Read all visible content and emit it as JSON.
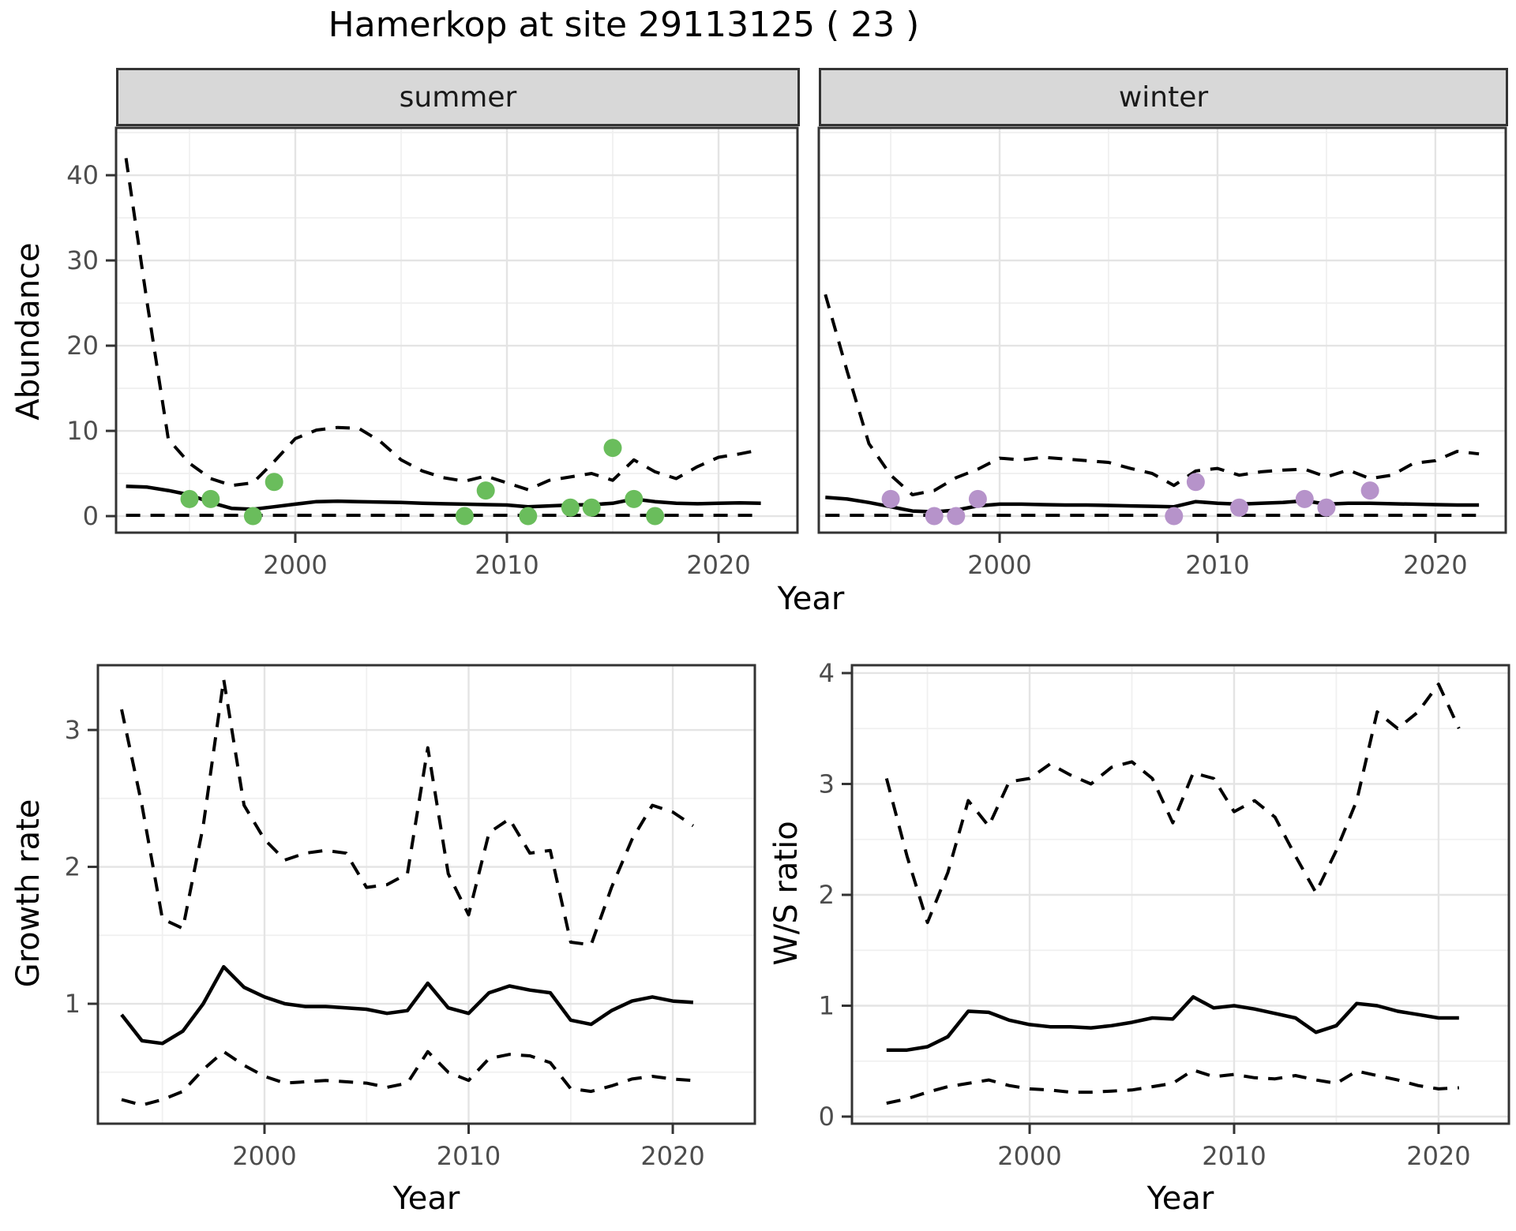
{
  "title": "Hamerkop at site 29113125 ( 23 )",
  "colors": {
    "background": "#ffffff",
    "summer_point": "#6abd5c",
    "winter_point": "#b693ca",
    "line": "#000000",
    "grid_major": "#e4e4e4",
    "grid_minor": "#f0f0f0",
    "panel_border": "#333333",
    "strip_bg": "#d8d8d8",
    "tick_text": "#4d4d4d"
  },
  "chart_data": [
    {
      "id": "abundance_summer",
      "type": "line",
      "facet_label": "summer",
      "xlabel": "Year",
      "ylabel": "Abundance",
      "x_ticks": [
        2000,
        2010,
        2020
      ],
      "y_ticks": [
        0,
        10,
        20,
        30,
        40
      ],
      "xlim": [
        1991.53,
        2023.73
      ],
      "ylim": [
        -1.94,
        45.56
      ],
      "grid": "on",
      "legend": "none",
      "years": [
        1992,
        1993,
        1994,
        1995,
        1996,
        1997,
        1998,
        1999,
        2000,
        2001,
        2002,
        2003,
        2004,
        2005,
        2006,
        2007,
        2008,
        2009,
        2010,
        2011,
        2012,
        2013,
        2014,
        2015,
        2016,
        2017,
        2018,
        2019,
        2020,
        2021,
        2022
      ],
      "series": [
        {
          "name": "mean",
          "style": "solid",
          "values": [
            3.5,
            3.4,
            3.0,
            2.5,
            1.6,
            0.9,
            0.8,
            1.1,
            1.4,
            1.7,
            1.75,
            1.7,
            1.65,
            1.6,
            1.5,
            1.45,
            1.4,
            1.35,
            1.3,
            1.1,
            1.2,
            1.3,
            1.35,
            1.5,
            2.0,
            1.7,
            1.5,
            1.45,
            1.5,
            1.55,
            1.5
          ]
        },
        {
          "name": "upper_ci",
          "style": "dashed",
          "values": [
            42,
            25,
            9,
            6.2,
            4.4,
            3.6,
            3.9,
            6.4,
            9.1,
            10.1,
            10.4,
            10.3,
            8.8,
            6.6,
            5.3,
            4.5,
            4.1,
            4.7,
            3.9,
            3.1,
            4.2,
            4.6,
            5.0,
            4.2,
            6.6,
            5.2,
            4.4,
            5.8,
            6.9,
            7.3,
            7.8
          ]
        },
        {
          "name": "lower_ci",
          "style": "dashed",
          "values": [
            0.1,
            0.1,
            0.1,
            0.1,
            0.1,
            0.1,
            0.1,
            0.1,
            0.1,
            0.1,
            0.1,
            0.1,
            0.1,
            0.1,
            0.1,
            0.1,
            0.1,
            0.1,
            0.1,
            0.1,
            0.1,
            0.1,
            0.1,
            0.1,
            0.1,
            0.1,
            0.1,
            0.1,
            0.1,
            0.1,
            0.1
          ]
        }
      ],
      "points": {
        "name": "observed_counts",
        "color_key": "summer_point",
        "x": [
          1995,
          1996,
          1998,
          1999,
          2008,
          2009,
          2011,
          2013,
          2014,
          2015,
          2016,
          2017
        ],
        "y": [
          2,
          2,
          0,
          4,
          0,
          3,
          0,
          1,
          1,
          8,
          2,
          0
        ]
      }
    },
    {
      "id": "abundance_winter",
      "type": "line",
      "facet_label": "winter",
      "xlabel": "Year",
      "ylabel": "Abundance",
      "x_ticks": [
        2000,
        2010,
        2020
      ],
      "y_ticks": [
        0,
        10,
        20,
        30,
        40
      ],
      "xlim": [
        1991.7,
        2023.23
      ],
      "ylim": [
        -1.94,
        45.56
      ],
      "grid": "on",
      "legend": "none",
      "years": [
        1992,
        1993,
        1994,
        1995,
        1996,
        1997,
        1998,
        1999,
        2000,
        2001,
        2002,
        2003,
        2004,
        2005,
        2006,
        2007,
        2008,
        2009,
        2010,
        2011,
        2012,
        2013,
        2014,
        2015,
        2016,
        2017,
        2018,
        2019,
        2020,
        2021,
        2022
      ],
      "series": [
        {
          "name": "mean",
          "style": "solid",
          "values": [
            2.2,
            2.0,
            1.6,
            1.1,
            0.6,
            0.5,
            0.7,
            1.2,
            1.4,
            1.4,
            1.35,
            1.3,
            1.3,
            1.25,
            1.2,
            1.15,
            1.1,
            1.7,
            1.5,
            1.4,
            1.5,
            1.6,
            1.8,
            1.4,
            1.5,
            1.5,
            1.45,
            1.4,
            1.35,
            1.3,
            1.3
          ]
        },
        {
          "name": "upper_ci",
          "style": "dashed",
          "values": [
            26,
            17,
            8.5,
            4.8,
            2.5,
            3.0,
            4.5,
            5.5,
            6.8,
            6.6,
            6.9,
            6.7,
            6.5,
            6.3,
            5.6,
            5.0,
            3.6,
            5.3,
            5.6,
            4.8,
            5.2,
            5.4,
            5.5,
            4.6,
            5.4,
            4.4,
            4.8,
            6.2,
            6.5,
            7.6,
            7.3
          ]
        },
        {
          "name": "lower_ci",
          "style": "dashed",
          "values": [
            0.1,
            0.1,
            0.1,
            0.1,
            0.1,
            0.1,
            0.1,
            0.1,
            0.1,
            0.1,
            0.1,
            0.1,
            0.1,
            0.1,
            0.1,
            0.1,
            0.1,
            0.1,
            0.1,
            0.1,
            0.1,
            0.1,
            0.1,
            0.1,
            0.1,
            0.1,
            0.1,
            0.1,
            0.1,
            0.1,
            0.1
          ]
        }
      ],
      "points": {
        "name": "observed_counts",
        "color_key": "winter_point",
        "x": [
          1995,
          1997,
          1998,
          1999,
          2008,
          2009,
          2011,
          2014,
          2015,
          2017
        ],
        "y": [
          2,
          0,
          0,
          2,
          0,
          4,
          1,
          2,
          1,
          3
        ]
      }
    },
    {
      "id": "growth_rate",
      "type": "line",
      "facet_label": "",
      "xlabel": "Year",
      "ylabel": "Growth rate",
      "x_ticks": [
        2000,
        2010,
        2020
      ],
      "y_ticks": [
        1,
        2,
        3
      ],
      "xlim": [
        1991.84,
        2024.02
      ],
      "ylim": [
        0.124,
        3.473
      ],
      "grid": "on",
      "legend": "none",
      "years": [
        1993,
        1994,
        1995,
        1996,
        1997,
        1998,
        1999,
        2000,
        2001,
        2002,
        2003,
        2004,
        2005,
        2006,
        2007,
        2008,
        2009,
        2010,
        2011,
        2012,
        2013,
        2014,
        2015,
        2016,
        2017,
        2018,
        2019,
        2020,
        2021
      ],
      "series": [
        {
          "name": "mean",
          "style": "solid",
          "values": [
            0.92,
            0.73,
            0.71,
            0.8,
            1.0,
            1.27,
            1.12,
            1.05,
            1.0,
            0.98,
            0.98,
            0.97,
            0.96,
            0.93,
            0.95,
            1.15,
            0.97,
            0.93,
            1.08,
            1.13,
            1.1,
            1.08,
            0.88,
            0.85,
            0.95,
            1.02,
            1.05,
            1.02,
            1.01
          ]
        },
        {
          "name": "upper_ci",
          "style": "dashed",
          "values": [
            3.15,
            2.45,
            1.62,
            1.55,
            2.3,
            3.37,
            2.45,
            2.2,
            2.05,
            2.1,
            2.12,
            2.1,
            1.85,
            1.87,
            1.95,
            2.87,
            1.95,
            1.65,
            2.25,
            2.35,
            2.1,
            2.12,
            1.45,
            1.43,
            1.85,
            2.2,
            2.45,
            2.4,
            2.3
          ]
        },
        {
          "name": "lower_ci",
          "style": "dashed",
          "values": [
            0.3,
            0.26,
            0.3,
            0.36,
            0.52,
            0.65,
            0.55,
            0.47,
            0.42,
            0.43,
            0.44,
            0.43,
            0.42,
            0.39,
            0.42,
            0.65,
            0.5,
            0.44,
            0.6,
            0.63,
            0.62,
            0.57,
            0.38,
            0.36,
            0.4,
            0.45,
            0.47,
            0.45,
            0.44
          ]
        }
      ],
      "points": null
    },
    {
      "id": "ws_ratio",
      "type": "line",
      "facet_label": "",
      "xlabel": "Year",
      "ylabel": "W/S ratio",
      "x_ticks": [
        2000,
        2010,
        2020
      ],
      "y_ticks": [
        0,
        1,
        2,
        3,
        4
      ],
      "xlim": [
        1991.31,
        2023.44
      ],
      "ylim": [
        -0.064,
        4.071
      ],
      "grid": "on",
      "legend": "none",
      "years": [
        1993,
        1994,
        1995,
        1996,
        1997,
        1998,
        1999,
        2000,
        2001,
        2002,
        2003,
        2004,
        2005,
        2006,
        2007,
        2008,
        2009,
        2010,
        2011,
        2012,
        2013,
        2014,
        2015,
        2016,
        2017,
        2018,
        2019,
        2020,
        2021
      ],
      "series": [
        {
          "name": "mean",
          "style": "solid",
          "values": [
            0.6,
            0.6,
            0.63,
            0.72,
            0.95,
            0.94,
            0.87,
            0.83,
            0.81,
            0.81,
            0.8,
            0.82,
            0.85,
            0.89,
            0.88,
            1.08,
            0.98,
            1.0,
            0.97,
            0.93,
            0.89,
            0.76,
            0.82,
            1.02,
            1.0,
            0.95,
            0.92,
            0.89,
            0.89
          ]
        },
        {
          "name": "upper_ci",
          "style": "dashed",
          "values": [
            3.05,
            2.35,
            1.75,
            2.2,
            2.85,
            2.62,
            3.02,
            3.05,
            3.18,
            3.08,
            3.0,
            3.15,
            3.2,
            3.05,
            2.65,
            3.1,
            3.05,
            2.75,
            2.85,
            2.7,
            2.35,
            2.02,
            2.4,
            2.85,
            3.65,
            3.5,
            3.65,
            3.9,
            3.5
          ]
        },
        {
          "name": "lower_ci",
          "style": "dashed",
          "values": [
            0.12,
            0.16,
            0.22,
            0.27,
            0.3,
            0.33,
            0.28,
            0.25,
            0.24,
            0.22,
            0.22,
            0.23,
            0.24,
            0.27,
            0.3,
            0.42,
            0.36,
            0.38,
            0.35,
            0.34,
            0.37,
            0.33,
            0.3,
            0.41,
            0.37,
            0.33,
            0.28,
            0.25,
            0.26
          ]
        }
      ],
      "points": null
    }
  ]
}
